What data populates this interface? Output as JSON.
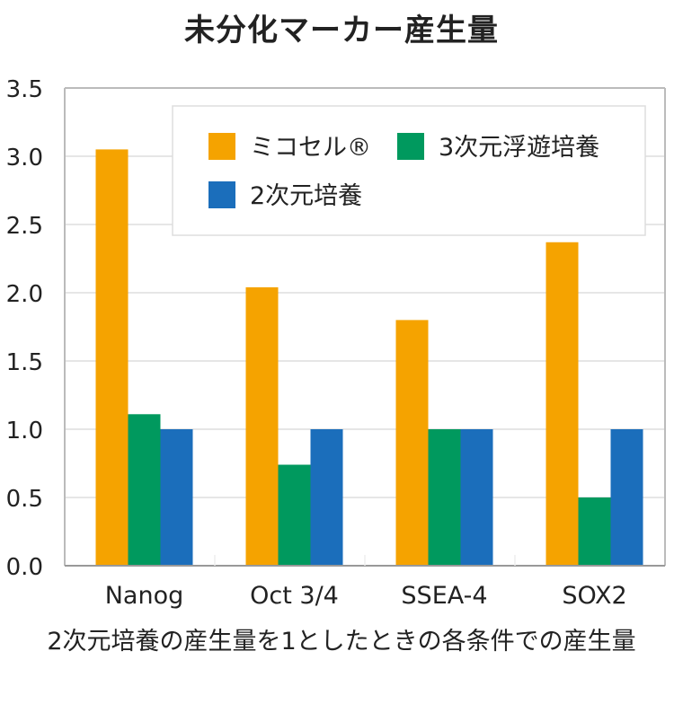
{
  "chart_data": {
    "type": "bar",
    "title": "未分化マーカー産生量",
    "xlabel": "2次元培養の産生量を1としたときの各条件での産生量",
    "ylabel": "",
    "categories": [
      "Nanog",
      "Oct 3/4",
      "SSEA-4",
      "SOX2"
    ],
    "series": [
      {
        "name": "ミコセル®",
        "color": "#F5A300",
        "values": [
          3.05,
          2.04,
          1.8,
          2.37
        ]
      },
      {
        "name": "3次元浮遊培養",
        "color": "#00995E",
        "values": [
          1.11,
          0.74,
          1.0,
          0.5
        ]
      },
      {
        "name": "2次元培養",
        "color": "#1B6EBB",
        "values": [
          1.0,
          1.0,
          1.0,
          1.0
        ]
      }
    ],
    "ylim": [
      0,
      3.5
    ],
    "yticks": [
      "0.0",
      "0.5",
      "1.0",
      "1.5",
      "2.0",
      "2.5",
      "3.0",
      "3.5"
    ],
    "ytick_values": [
      0,
      0.5,
      1.0,
      1.5,
      2.0,
      2.5,
      3.0,
      3.5
    ],
    "grid": true,
    "legend_position": "top-right"
  }
}
